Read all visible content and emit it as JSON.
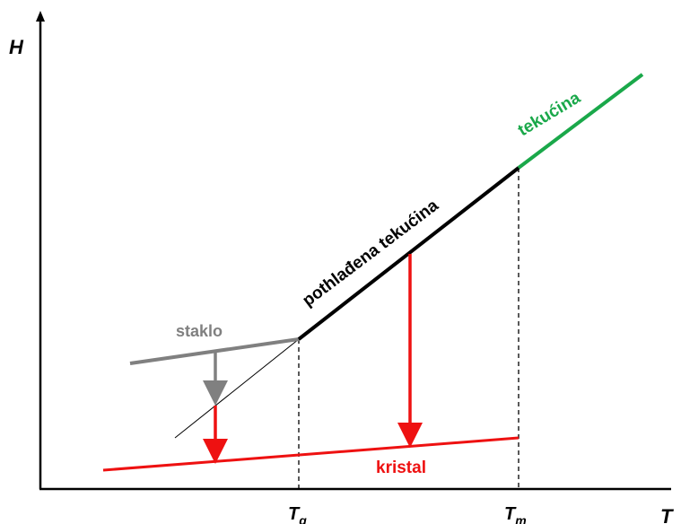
{
  "axes": {
    "y_label": "H",
    "x_label": "T"
  },
  "ticks": {
    "tg_main": "T",
    "tg_sub": "g",
    "tm_main": "T",
    "tm_sub": "m"
  },
  "labels": {
    "liquid": "tekućina",
    "supercooled": "pothlađena tekućina",
    "glass": "staklo",
    "crystal": "kristal"
  },
  "colors": {
    "liquid": "#1aa84a",
    "supercooled": "#000000",
    "glass": "#808080",
    "crystal": "#ee1111",
    "axis": "#000000"
  }
}
